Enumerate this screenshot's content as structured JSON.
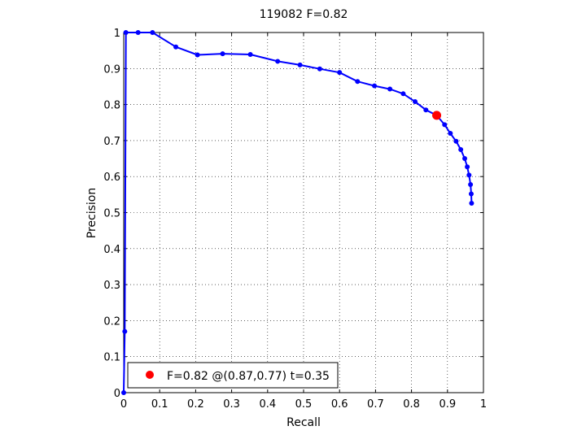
{
  "chart_data": {
    "type": "line",
    "title": "119082 F=0.82",
    "xlabel": "Recall",
    "ylabel": "Precision",
    "xlim": [
      0,
      1
    ],
    "ylim": [
      0,
      1
    ],
    "grid": true,
    "xticks": [
      "0",
      "0.1",
      "0.2",
      "0.3",
      "0.4",
      "0.5",
      "0.6",
      "0.7",
      "0.8",
      "0.9",
      "1"
    ],
    "yticks": [
      "0",
      "0.1",
      "0.2",
      "0.3",
      "0.4",
      "0.5",
      "0.6",
      "0.7",
      "0.8",
      "0.9",
      "1"
    ],
    "series": [
      {
        "color": "#0000ff",
        "points": [
          [
            0.0,
            0.0
          ],
          [
            0.003,
            0.17
          ],
          [
            0.006,
            1.0
          ],
          [
            0.04,
            1.0
          ],
          [
            0.08,
            1.0
          ],
          [
            0.145,
            0.96
          ],
          [
            0.205,
            0.938
          ],
          [
            0.275,
            0.941
          ],
          [
            0.352,
            0.939
          ],
          [
            0.428,
            0.92
          ],
          [
            0.49,
            0.91
          ],
          [
            0.545,
            0.899
          ],
          [
            0.6,
            0.889
          ],
          [
            0.65,
            0.864
          ],
          [
            0.697,
            0.852
          ],
          [
            0.74,
            0.843
          ],
          [
            0.777,
            0.83
          ],
          [
            0.81,
            0.808
          ],
          [
            0.84,
            0.785
          ],
          [
            0.87,
            0.77
          ],
          [
            0.892,
            0.744
          ],
          [
            0.908,
            0.72
          ],
          [
            0.924,
            0.698
          ],
          [
            0.937,
            0.675
          ],
          [
            0.948,
            0.65
          ],
          [
            0.955,
            0.627
          ],
          [
            0.96,
            0.604
          ],
          [
            0.964,
            0.578
          ],
          [
            0.966,
            0.552
          ],
          [
            0.967,
            0.526
          ]
        ]
      }
    ],
    "highlight": {
      "x": 0.87,
      "y": 0.77,
      "color": "#ff0000"
    },
    "legend": {
      "text": "F=0.82 @(0.87,0.77) t=0.35",
      "position": "bottom-left"
    }
  }
}
